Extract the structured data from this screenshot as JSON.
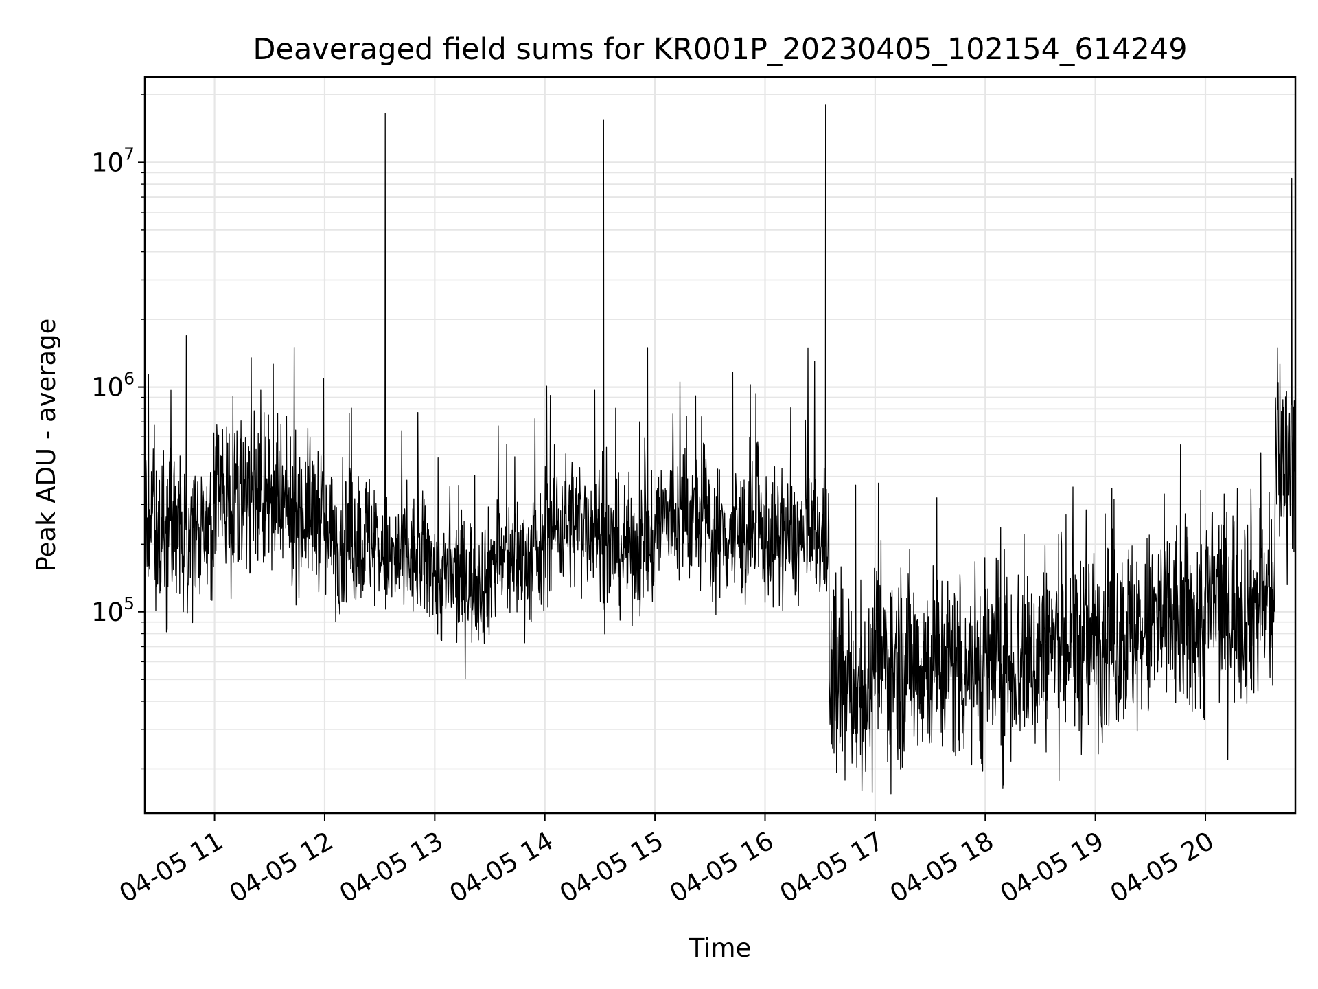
{
  "chart_data": {
    "type": "line",
    "title": "Deaveraged field sums for KR001P_20230405_102154_614249",
    "xlabel": "Time",
    "ylabel": "Peak ADU - average",
    "yscale": "log",
    "ylim": [
      12700,
      24000000
    ],
    "xlim": [
      "04-05 10:22",
      "04-05 20:49"
    ],
    "x_ticks": [
      "04-05 11",
      "04-05 12",
      "04-05 13",
      "04-05 14",
      "04-05 15",
      "04-05 16",
      "04-05 17",
      "04-05 18",
      "04-05 19",
      "04-05 20"
    ],
    "y_ticks": [
      {
        "value": 100000,
        "base": "10",
        "exp": "5"
      },
      {
        "value": 1000000,
        "base": "10",
        "exp": "6"
      },
      {
        "value": 10000000,
        "base": "10",
        "exp": "7"
      }
    ],
    "grid": true,
    "line_color": "#000000",
    "segments": [
      {
        "start": "04-05 10:22",
        "end": "04-05 11:00",
        "level": 230000,
        "spread": 0.16
      },
      {
        "start": "04-05 11:00",
        "end": "04-05 11:30",
        "level": 330000,
        "spread": 0.17
      },
      {
        "start": "04-05 11:30",
        "end": "04-05 12:00",
        "level": 280000,
        "spread": 0.16
      },
      {
        "start": "04-05 12:00",
        "end": "04-05 12:30",
        "level": 210000,
        "spread": 0.15
      },
      {
        "start": "04-05 12:30",
        "end": "04-05 13:00",
        "level": 170000,
        "spread": 0.14
      },
      {
        "start": "04-05 13:00",
        "end": "04-05 13:30",
        "level": 140000,
        "spread": 0.14
      },
      {
        "start": "04-05 13:30",
        "end": "04-05 14:00",
        "level": 170000,
        "spread": 0.14
      },
      {
        "start": "04-05 14:00",
        "end": "04-05 14:30",
        "level": 250000,
        "spread": 0.15
      },
      {
        "start": "04-05 14:30",
        "end": "04-05 15:00",
        "level": 190000,
        "spread": 0.14
      },
      {
        "start": "04-05 15:00",
        "end": "04-05 15:30",
        "level": 260000,
        "spread": 0.15
      },
      {
        "start": "04-05 15:30",
        "end": "04-05 16:00",
        "level": 220000,
        "spread": 0.15
      },
      {
        "start": "04-05 16:00",
        "end": "04-05 16:35",
        "level": 210000,
        "spread": 0.14
      },
      {
        "start": "04-05 16:35",
        "end": "04-05 17:00",
        "level": 45000,
        "spread": 0.2
      },
      {
        "start": "04-05 17:00",
        "end": "04-05 17:30",
        "level": 60000,
        "spread": 0.22
      },
      {
        "start": "04-05 17:30",
        "end": "04-05 18:00",
        "level": 58000,
        "spread": 0.22
      },
      {
        "start": "04-05 18:00",
        "end": "04-05 18:30",
        "level": 60000,
        "spread": 0.22
      },
      {
        "start": "04-05 18:30",
        "end": "04-05 19:00",
        "level": 72000,
        "spread": 0.22
      },
      {
        "start": "04-05 19:00",
        "end": "04-05 19:30",
        "level": 80000,
        "spread": 0.22
      },
      {
        "start": "04-05 19:30",
        "end": "04-05 20:00",
        "level": 90000,
        "spread": 0.22
      },
      {
        "start": "04-05 20:00",
        "end": "04-05 20:38",
        "level": 110000,
        "spread": 0.22
      },
      {
        "start": "04-05 20:38",
        "end": "04-05 20:49",
        "level": 500000,
        "spread": 0.22
      }
    ],
    "spikes": [
      {
        "x": "04-05 11:20",
        "y": 1350000
      },
      {
        "x": "04-05 12:33",
        "y": 16500000
      },
      {
        "x": "04-05 14:32",
        "y": 15500000
      },
      {
        "x": "04-05 14:56",
        "y": 1500000
      },
      {
        "x": "04-05 16:27",
        "y": 1300000
      },
      {
        "x": "04-05 16:33",
        "y": 18000000
      },
      {
        "x": "04-05 20:47",
        "y": 8500000
      }
    ]
  }
}
